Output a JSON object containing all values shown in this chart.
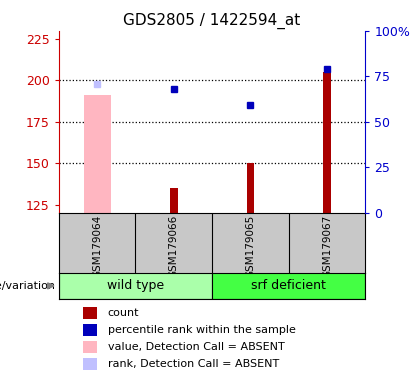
{
  "title": "GDS2805 / 1422594_at",
  "samples": [
    "GSM179064",
    "GSM179066",
    "GSM179065",
    "GSM179067"
  ],
  "ylim_left": [
    120,
    230
  ],
  "ylim_right": [
    0,
    100
  ],
  "yticks_left": [
    125,
    150,
    175,
    200,
    225
  ],
  "yticks_right": [
    0,
    25,
    50,
    75,
    100
  ],
  "count_values": [
    null,
    135,
    150,
    205
  ],
  "percentile_values": [
    null,
    195,
    185,
    207
  ],
  "absent_value_bar": [
    0,
    191
  ],
  "absent_rank_point": [
    0,
    198
  ],
  "absent_value_color": "#FFB6C1",
  "absent_rank_color": "#C0C0FF",
  "count_color": "#AA0000",
  "percentile_color": "#0000BB",
  "label_area_bg": "#C8C8C8",
  "wild_type_bg": "#AAFFAA",
  "srf_deficient_bg": "#44FF44",
  "left_axis_color": "#CC0000",
  "right_axis_color": "#0000CC",
  "legend_items": [
    [
      "#AA0000",
      "count"
    ],
    [
      "#0000BB",
      "percentile rank within the sample"
    ],
    [
      "#FFB6C1",
      "value, Detection Call = ABSENT"
    ],
    [
      "#C0C0FF",
      "rank, Detection Call = ABSENT"
    ]
  ]
}
